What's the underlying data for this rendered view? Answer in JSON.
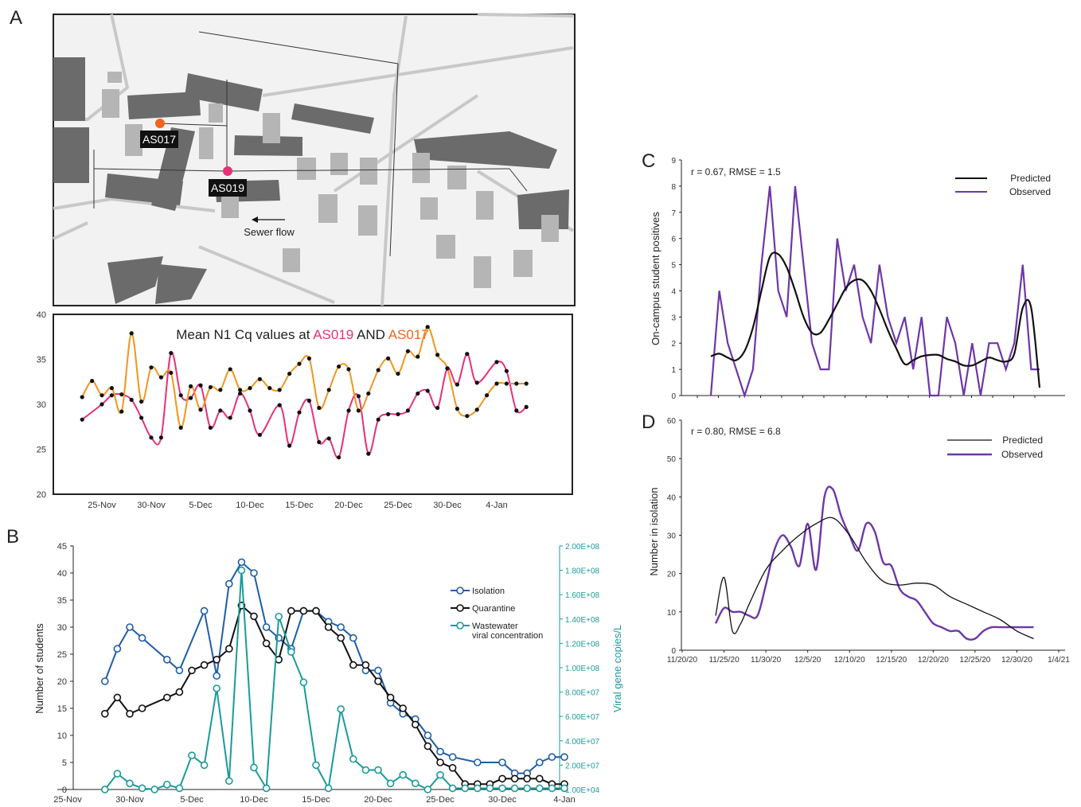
{
  "panel_letters": [
    "A",
    "B",
    "C",
    "D"
  ],
  "colors": {
    "as019": "#e8307a",
    "as017": "#f0961e",
    "isolation": "#1f5da6",
    "quarantine": "#111111",
    "wastewater": "#1a9a9a",
    "predicted": "#111111",
    "observed": "#6e36a8",
    "marker_as017": "#f06420",
    "marker_as019": "#e8307a"
  },
  "map": {
    "labels": [
      "AS017",
      "AS019"
    ],
    "arrow_label": "Sewer flow"
  },
  "chart_data": [
    {
      "id": "A",
      "type": "line",
      "title_parts": [
        "Mean N1 Cq values at ",
        "AS019",
        " AND ",
        "AS017"
      ],
      "x_ticks": [
        "25-Nov",
        "30-Nov",
        "5-Dec",
        "10-Dec",
        "15-Dec",
        "20-Dec",
        "25-Dec",
        "30-Dec",
        "4-Jan"
      ],
      "ylim": [
        20,
        40
      ],
      "y_ticks": [
        20,
        25,
        30,
        35,
        40
      ],
      "x_day_range": [
        -4,
        44
      ],
      "series": [
        {
          "name": "AS019",
          "color_key": "as019",
          "x": [
            0,
            2,
            3,
            4,
            5,
            6,
            7,
            8,
            9,
            10,
            11,
            12,
            13,
            14,
            15,
            16,
            17,
            18,
            20,
            21,
            22,
            23,
            24,
            25,
            26,
            27,
            28,
            29,
            30,
            31,
            32,
            33,
            34,
            35,
            36,
            37,
            38,
            39,
            40,
            42,
            43,
            44,
            45
          ],
          "values": [
            28.3,
            30.0,
            31.0,
            31.1,
            30.5,
            28.5,
            26.3,
            26.3,
            35.7,
            31.0,
            30.7,
            32.1,
            27.4,
            29.3,
            28.5,
            31.2,
            29.3,
            26.6,
            29.9,
            25.4,
            29.1,
            30.4,
            25.8,
            26.2,
            24.1,
            29.3,
            30.9,
            24.5,
            28.3,
            28.9,
            28.9,
            29.3,
            31.2,
            31.5,
            29.6,
            34.0,
            32.2,
            35.6,
            32.4,
            34.7,
            33.7,
            29.3,
            29.7
          ]
        },
        {
          "name": "AS017",
          "color_key": "as017",
          "x": [
            0,
            1,
            2,
            3,
            4,
            5,
            6,
            7,
            8,
            9,
            10,
            11,
            12,
            13,
            14,
            15,
            16,
            17,
            18,
            19,
            20,
            21,
            22,
            23,
            24,
            25,
            26,
            27,
            28,
            29,
            30,
            31,
            32,
            33,
            34,
            35,
            36,
            37,
            38,
            39,
            40,
            41,
            42,
            43,
            44,
            45
          ],
          "values": [
            30.8,
            32.6,
            31.0,
            31.8,
            29.2,
            37.9,
            30.3,
            34.1,
            33.0,
            33.5,
            27.4,
            32.0,
            29.4,
            31.9,
            31.6,
            33.9,
            31.6,
            31.8,
            32.8,
            31.8,
            31.6,
            33.4,
            34.5,
            35.1,
            29.6,
            31.6,
            34.2,
            33.9,
            29.3,
            31.2,
            33.8,
            35.1,
            33.4,
            35.9,
            35.3,
            38.6,
            35.5,
            34.0,
            29.5,
            28.7,
            29.4,
            31.0,
            32.3,
            32.3,
            32.3,
            32.3
          ]
        }
      ]
    },
    {
      "id": "B",
      "type": "line",
      "ylabel": "Number of students",
      "y2label": "Viral gene copies/L",
      "x_ticks": [
        "25-Nov",
        "30-Nov",
        "5-Dec",
        "10-Dec",
        "15-Dec",
        "20-Dec",
        "25-Dec",
        "30-Dec",
        "4-Jan"
      ],
      "ylim": [
        0,
        45
      ],
      "y_ticks": [
        0,
        5,
        10,
        15,
        20,
        25,
        30,
        35,
        40,
        45
      ],
      "y2_ticks": [
        "1.00E+04",
        "2.00E+07",
        "4.00E+07",
        "6.00E+07",
        "8.00E+07",
        "1.00E+08",
        "1.20E+08",
        "1.40E+08",
        "1.60E+08",
        "1.80E+08",
        "2.00E+08"
      ],
      "y2lim": [
        0,
        200000000.0
      ],
      "legend": [
        "Isolation",
        "Quarantine",
        "Wastewater",
        "viral concentration"
      ],
      "series": [
        {
          "name": "Isolation",
          "color_key": "isolation",
          "axis": "left",
          "x": [
            5,
            6,
            7,
            8,
            10,
            11,
            13,
            14,
            15,
            16,
            17,
            18,
            19,
            20,
            21,
            22,
            23,
            24,
            25,
            26,
            27,
            28,
            29,
            30,
            31,
            32,
            33,
            35,
            37,
            38,
            39,
            40,
            41,
            42
          ],
          "values": [
            20,
            26,
            30,
            28,
            24,
            22,
            33,
            21,
            38,
            42,
            40,
            30,
            28,
            26,
            33,
            33,
            31,
            30,
            28,
            22,
            22,
            16,
            14,
            13,
            10,
            7,
            6,
            5,
            5,
            3,
            3,
            5,
            6,
            6
          ]
        },
        {
          "name": "Quarantine",
          "color_key": "quarantine",
          "axis": "left",
          "x": [
            5,
            6,
            7,
            8,
            10,
            11,
            12,
            13,
            14,
            15,
            16,
            17,
            18,
            19,
            20,
            21,
            22,
            23,
            24,
            25,
            26,
            27,
            28,
            29,
            30,
            31,
            32,
            33,
            34,
            35,
            36,
            37,
            38,
            39,
            40,
            41,
            42
          ],
          "values": [
            14,
            17,
            14,
            15,
            17,
            18,
            22,
            23,
            24,
            26,
            34,
            32,
            27,
            24,
            33,
            33,
            33,
            30,
            28,
            23,
            23,
            20,
            17,
            15,
            12,
            8,
            5,
            4,
            1,
            1,
            1,
            2,
            2,
            2,
            2,
            1,
            1
          ]
        },
        {
          "name": "Wastewater viral concentration",
          "color_key": "wastewater",
          "axis": "right",
          "x": [
            5,
            6,
            7,
            8,
            9,
            10,
            11,
            12,
            13,
            14,
            15,
            16,
            17,
            18,
            19,
            20,
            21,
            22,
            23,
            24,
            25,
            26,
            27,
            28,
            29,
            30,
            31,
            32,
            33,
            34,
            35,
            36,
            37,
            38,
            39,
            40,
            41,
            42
          ],
          "values": [
            10000.0,
            13000000.0,
            5000000.0,
            1000000.0,
            10000.0,
            4000000.0,
            1000000.0,
            28000000.0,
            20000000.0,
            83000000.0,
            7000000.0,
            180000000.0,
            18000000.0,
            1000000.0,
            142000000.0,
            113000000.0,
            88000000.0,
            20000000.0,
            1000000.0,
            66000000.0,
            25000000.0,
            16000000.0,
            16000000.0,
            5000000.0,
            12000000.0,
            5000000.0,
            10000.0,
            12000000.0,
            1000000.0,
            1000000.0,
            1000000.0,
            1000000.0,
            1000000.0,
            1000000.0,
            1000000.0,
            1000000.0,
            1000000.0,
            1000000.0
          ]
        }
      ]
    },
    {
      "id": "C",
      "type": "line",
      "annotation": "r = 0.67, RMSE = 1.5",
      "ylabel": "On-campus student positives",
      "ylim": [
        0,
        9
      ],
      "y_ticks": [
        0,
        1,
        2,
        3,
        4,
        5,
        6,
        7,
        8,
        9
      ],
      "legend": [
        "Predicted",
        "Observed"
      ],
      "series": [
        {
          "name": "Predicted",
          "color_key": "predicted",
          "x": [
            0,
            1,
            2,
            3,
            4,
            5,
            6,
            7,
            8,
            9,
            10,
            11,
            12,
            13,
            14,
            15,
            16,
            17,
            18,
            19,
            20,
            21,
            22,
            23,
            24,
            25,
            26,
            27,
            28,
            29,
            30,
            31,
            32,
            33,
            34,
            35,
            36,
            37,
            38,
            39
          ],
          "values": [
            1.5,
            1.6,
            1.45,
            1.35,
            1.7,
            2.6,
            4.0,
            5.3,
            5.4,
            4.9,
            4.0,
            3.0,
            2.4,
            2.4,
            2.9,
            3.5,
            4.1,
            4.4,
            4.4,
            4.0,
            3.3,
            2.5,
            1.8,
            1.2,
            1.35,
            1.5,
            1.55,
            1.55,
            1.4,
            1.3,
            1.15,
            1.15,
            1.3,
            1.45,
            1.35,
            1.3,
            1.6,
            3.35,
            3.35,
            0.3
          ]
        },
        {
          "name": "Observed",
          "color_key": "observed",
          "x": [
            0,
            1,
            2,
            3,
            4,
            5,
            6,
            7,
            8,
            9,
            10,
            11,
            12,
            13,
            14,
            15,
            16,
            17,
            18,
            19,
            20,
            21,
            22,
            23,
            24,
            25,
            26,
            27,
            28,
            29,
            30,
            31,
            32,
            33,
            34,
            35,
            36,
            37,
            38,
            39
          ],
          "values": [
            0,
            4,
            2,
            1,
            0,
            1,
            5,
            8,
            4,
            3,
            8,
            5,
            2,
            1,
            1,
            6,
            4,
            5,
            3,
            2,
            5,
            3,
            2,
            3,
            1,
            3,
            0,
            0,
            3,
            2,
            0,
            2,
            0,
            2,
            2,
            1,
            2,
            5,
            1,
            1
          ]
        }
      ]
    },
    {
      "id": "D",
      "type": "line",
      "annotation": "r = 0.80, RMSE = 6.8",
      "ylabel": "Number in isolation",
      "x_ticks": [
        "11/20/20",
        "11/25/20",
        "11/30/20",
        "12/5/20",
        "12/10/20",
        "12/15/20",
        "12/20/20",
        "12/25/20",
        "12/30/20",
        "1/4/21"
      ],
      "ylim": [
        0,
        60
      ],
      "y_ticks": [
        0,
        10,
        20,
        30,
        40,
        50,
        60
      ],
      "legend": [
        "Predicted",
        "Observed"
      ],
      "series": [
        {
          "name": "Predicted",
          "color_key": "predicted",
          "x": [
            4,
            5,
            6,
            7,
            8,
            10,
            12,
            14,
            16,
            18,
            20,
            22,
            24,
            26,
            28,
            30,
            32,
            34,
            36,
            38,
            40,
            42
          ],
          "values": [
            9,
            19,
            5,
            7,
            12,
            21,
            26,
            30,
            33,
            34.5,
            30,
            23,
            18,
            17,
            17.5,
            17,
            14,
            12,
            10,
            8,
            5,
            3
          ]
        },
        {
          "name": "Observed",
          "color_key": "observed",
          "x": [
            4,
            5,
            6,
            7,
            8,
            9,
            10,
            11,
            12,
            13,
            14,
            15,
            16,
            17,
            18,
            19,
            20,
            21,
            22,
            23,
            24,
            25,
            26,
            27,
            28,
            29,
            30,
            31,
            32,
            33,
            34,
            35,
            36,
            37,
            38,
            39,
            40,
            41,
            42
          ],
          "values": [
            7,
            11,
            10,
            10,
            9,
            9,
            17,
            26,
            30,
            27,
            22,
            33,
            21,
            40,
            42,
            35,
            30,
            26,
            33,
            31,
            23,
            22,
            16,
            14,
            13,
            10,
            7,
            6,
            5,
            5,
            3,
            3,
            5,
            6,
            6,
            6,
            6,
            6,
            6
          ]
        }
      ]
    }
  ]
}
